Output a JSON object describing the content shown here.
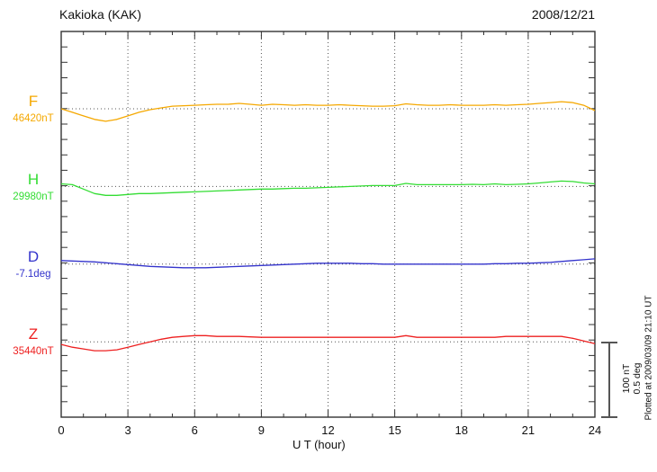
{
  "header": {
    "title": "Kakioka (KAK)",
    "date": "2008/12/21"
  },
  "footer": {
    "xaxis_label": "U T (hour)"
  },
  "annotations": {
    "scalebar_line1": "100 nT",
    "scalebar_line2": "0.5 deg",
    "plotted_at": "Plotted at 2009/03/09 21:10 UT"
  },
  "colors": {
    "frame": "#333333",
    "grid": "#555555",
    "scalebar": "#555555",
    "F": "#F5A800",
    "H": "#33DD33",
    "D": "#3333CC",
    "Z": "#EE2020"
  },
  "chart_data": {
    "type": "line",
    "title": "Kakioka (KAK)",
    "subtitle": "2008/12/21",
    "xlabel": "U T (hour)",
    "x_range": [
      0,
      24
    ],
    "x_ticks": [
      0,
      3,
      6,
      9,
      12,
      15,
      18,
      21,
      24
    ],
    "x_minor_step_hours": 1,
    "x_start": 0,
    "x_step": 0.5,
    "grid": "dotted vertical lines every 3 hours; dotted horizontal baseline per trace",
    "legend_position": "left margin labels",
    "scale": {
      "bar_nT": 100,
      "bar_deg": 0.5
    },
    "series": [
      {
        "name": "F",
        "unit": "nT",
        "baseline_value_label": "46420nT",
        "color": "#F5A800",
        "offsets": [
          0,
          -4.7,
          -9.4,
          -14.1,
          -16.5,
          -14.1,
          -9.4,
          -4.7,
          -1.2,
          1.2,
          3.5,
          4.1,
          4.7,
          5.3,
          5.9,
          5.9,
          7.1,
          5.9,
          4.7,
          5.9,
          5.3,
          4.7,
          5.3,
          4.7,
          4.7,
          5.3,
          4.7,
          4.1,
          3.5,
          3.5,
          4.1,
          6.5,
          5.3,
          4.7,
          4.7,
          5.3,
          4.7,
          4.7,
          4.7,
          5.3,
          4.7,
          5.3,
          5.9,
          7.1,
          8.2,
          9.4,
          8.2,
          4.7,
          -2.4
        ]
      },
      {
        "name": "H",
        "unit": "nT",
        "baseline_value_label": "29980nT",
        "color": "#33DD33",
        "offsets": [
          3.5,
          2.4,
          -3.5,
          -9.4,
          -11.8,
          -11.8,
          -10.6,
          -9.4,
          -9.4,
          -8.8,
          -8.2,
          -7.6,
          -7.1,
          -6.5,
          -5.9,
          -5.3,
          -4.7,
          -4.1,
          -3.5,
          -3.5,
          -2.9,
          -2.4,
          -2.4,
          -1.8,
          -1.2,
          -0.6,
          0,
          0.6,
          1.2,
          1.2,
          1.2,
          4.1,
          2.4,
          2.4,
          2.4,
          2.4,
          2.4,
          2.9,
          2.4,
          3.5,
          2.4,
          2.9,
          3.5,
          4.7,
          5.9,
          7.1,
          6.5,
          4.7,
          3.5
        ]
      },
      {
        "name": "D",
        "unit": "deg",
        "baseline_value_label": "-7.1deg",
        "color": "#3333CC",
        "offsets": [
          0.024,
          0.021,
          0.018,
          0.015,
          0.009,
          0.003,
          -0.003,
          -0.009,
          -0.015,
          -0.018,
          -0.021,
          -0.024,
          -0.024,
          -0.024,
          -0.021,
          -0.018,
          -0.015,
          -0.012,
          -0.009,
          -0.006,
          -0.003,
          0,
          0.003,
          0.006,
          0.006,
          0.006,
          0.006,
          0.003,
          0.003,
          0,
          0,
          0,
          0,
          0,
          0,
          0,
          0,
          0,
          0,
          0.003,
          0.003,
          0.006,
          0.006,
          0.009,
          0.012,
          0.018,
          0.024,
          0.029,
          0.035
        ]
      },
      {
        "name": "Z",
        "unit": "nT",
        "baseline_value_label": "35440nT",
        "color": "#EE2020",
        "offsets": [
          -3.5,
          -7.1,
          -9.4,
          -11.8,
          -11.8,
          -10.6,
          -7.1,
          -3.5,
          0,
          3.5,
          5.9,
          7.1,
          8.2,
          8.2,
          7.1,
          7.1,
          7.1,
          6.5,
          5.9,
          5.9,
          5.9,
          5.9,
          5.9,
          5.9,
          5.9,
          5.9,
          5.9,
          5.9,
          5.9,
          5.9,
          5.9,
          8.2,
          5.9,
          5.9,
          5.9,
          5.9,
          5.9,
          5.9,
          5.9,
          5.9,
          7.1,
          7.1,
          7.1,
          7.1,
          7.1,
          7.1,
          4.7,
          1.2,
          -2.4
        ]
      }
    ]
  }
}
